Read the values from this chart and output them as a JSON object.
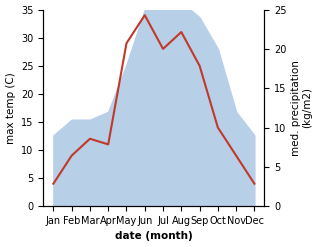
{
  "months": [
    "Jan",
    "Feb",
    "Mar",
    "Apr",
    "May",
    "Jun",
    "Jul",
    "Aug",
    "Sep",
    "Oct",
    "Nov",
    "Dec"
  ],
  "temp": [
    4.0,
    9.0,
    12.0,
    11.0,
    29.0,
    34.0,
    28.0,
    31.0,
    25.0,
    14.0,
    9.0,
    4.0
  ],
  "precip": [
    9,
    11,
    11,
    12,
    18,
    25,
    27,
    26,
    24,
    20,
    12,
    9
  ],
  "temp_color": "#c0392b",
  "precip_color": "#b8cfe8",
  "ylabel_left": "max temp (C)",
  "ylabel_right": "med. precipitation\n(kg/m2)",
  "xlabel": "date (month)",
  "ylim_left": [
    0,
    35
  ],
  "ylim_right": [
    0,
    25
  ],
  "yticks_left": [
    0,
    5,
    10,
    15,
    20,
    25,
    30,
    35
  ],
  "yticks_right": [
    0,
    5,
    10,
    15,
    20,
    25
  ],
  "label_fontsize": 7.5,
  "tick_fontsize": 7
}
